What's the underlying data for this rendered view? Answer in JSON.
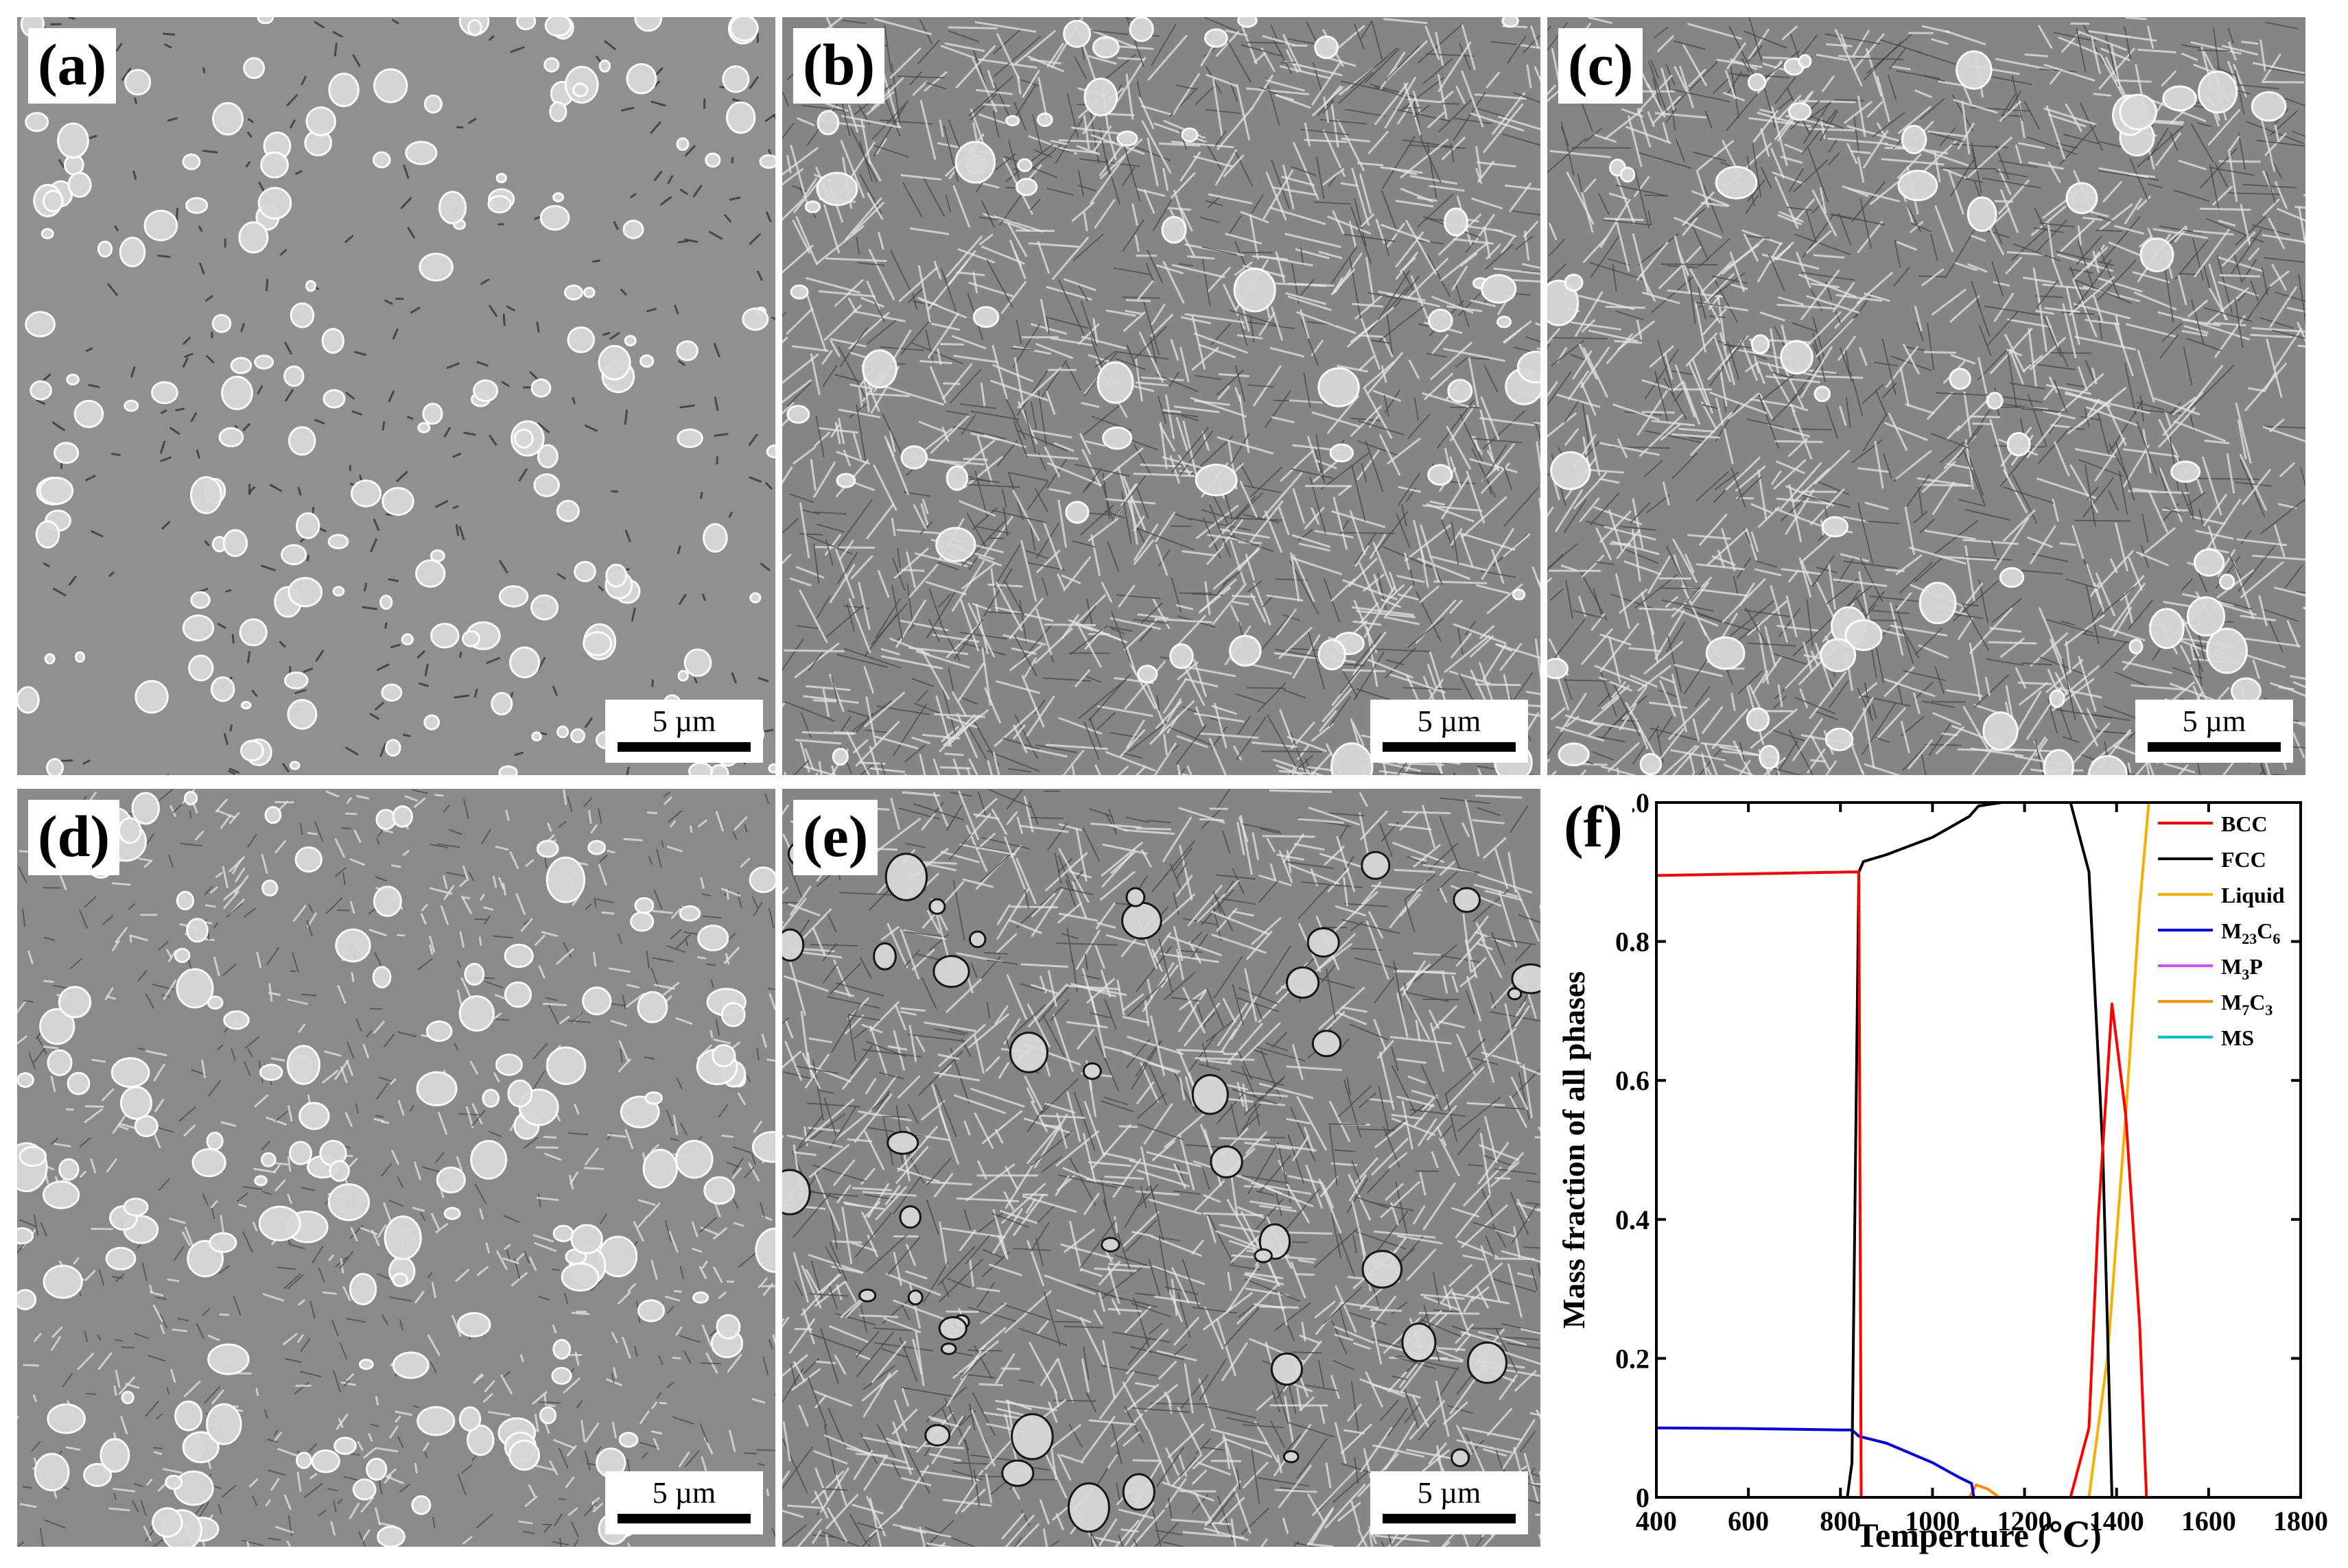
{
  "panels": [
    {
      "id": "a",
      "label": "(a)",
      "scale": "5 µm",
      "texture": "smooth"
    },
    {
      "id": "b",
      "label": "(b)",
      "scale": "5 µm",
      "texture": "lath"
    },
    {
      "id": "c",
      "label": "(c)",
      "scale": "5 µm",
      "texture": "lath"
    },
    {
      "id": "d",
      "label": "(d)",
      "scale": "5 µm",
      "texture": "fine"
    },
    {
      "id": "e",
      "label": "(e)",
      "scale": "5 µm",
      "texture": "lath-dark"
    }
  ],
  "chart_label": "(f)",
  "colors": {
    "BCC": "#ff0000",
    "FCC": "#000000",
    "Liquid": "#f5b000",
    "M23C6": "#0000ee",
    "M3P": "#d050ff",
    "M7C3": "#ff8c00",
    "MS": "#00c8c8"
  },
  "chart_data": {
    "type": "line",
    "xlabel": "Temperture (℃)",
    "ylabel": "Mass fraction of all phases",
    "xlim": [
      400,
      1800
    ],
    "ylim": [
      0,
      1.0
    ],
    "xticks": [
      "400",
      "600",
      "800",
      "1000",
      "1200",
      "1400",
      "1600",
      "1800"
    ],
    "yticks": [
      "0",
      "0.2",
      "0.4",
      "0.6",
      "0.8",
      "1.0"
    ],
    "legend_position": "top-right",
    "series": [
      {
        "name": "BCC",
        "key": "BCC",
        "legend_parts": [
          "BCC"
        ],
        "x": [
          400,
          820,
          825,
          840,
          845,
          1300,
          1340,
          1360,
          1390,
          1420,
          1450,
          1465,
          1800
        ],
        "y": [
          0.895,
          0.9,
          0.9,
          0.9,
          0,
          0,
          0.1,
          0.4,
          0.71,
          0.55,
          0.25,
          0,
          0
        ]
      },
      {
        "name": "FCC",
        "key": "FCC",
        "legend_parts": [
          "FCC"
        ],
        "x": [
          400,
          815,
          825,
          840,
          850,
          900,
          1000,
          1080,
          1100,
          1150,
          1300,
          1340,
          1370,
          1390,
          1800
        ],
        "y": [
          0,
          0,
          0.05,
          0.9,
          0.915,
          0.925,
          0.95,
          0.98,
          0.995,
          1.0,
          1.0,
          0.9,
          0.5,
          0,
          0
        ]
      },
      {
        "name": "Liquid",
        "key": "Liquid",
        "legend_parts": [
          "Liquid"
        ],
        "x": [
          400,
          1340,
          1380,
          1420,
          1450,
          1470,
          1800
        ],
        "y": [
          0,
          0,
          0.2,
          0.55,
          0.85,
          1.0,
          1.0
        ]
      },
      {
        "name": "M23C6",
        "key": "M23C6",
        "legend_parts": [
          "M",
          "23",
          "C",
          "6"
        ],
        "x": [
          400,
          600,
          800,
          825,
          840,
          900,
          1000,
          1060,
          1085,
          1090,
          1800
        ],
        "y": [
          0.1,
          0.099,
          0.097,
          0.097,
          0.088,
          0.078,
          0.05,
          0.028,
          0.02,
          0,
          0
        ]
      },
      {
        "name": "M3P",
        "key": "M3P",
        "legend_parts": [
          "M",
          "3",
          "P"
        ],
        "x": [
          400,
          1800
        ],
        "y": [
          0,
          0
        ]
      },
      {
        "name": "M7C3",
        "key": "M7C3",
        "legend_parts": [
          "M",
          "7",
          "C",
          "3"
        ],
        "x": [
          400,
          1080,
          1095,
          1120,
          1145,
          1800
        ],
        "y": [
          0,
          0,
          0.018,
          0.012,
          0,
          0
        ]
      },
      {
        "name": "MS",
        "key": "MS",
        "legend_parts": [
          "MS"
        ],
        "x": [
          400,
          1800
        ],
        "y": [
          0,
          0
        ]
      }
    ]
  }
}
